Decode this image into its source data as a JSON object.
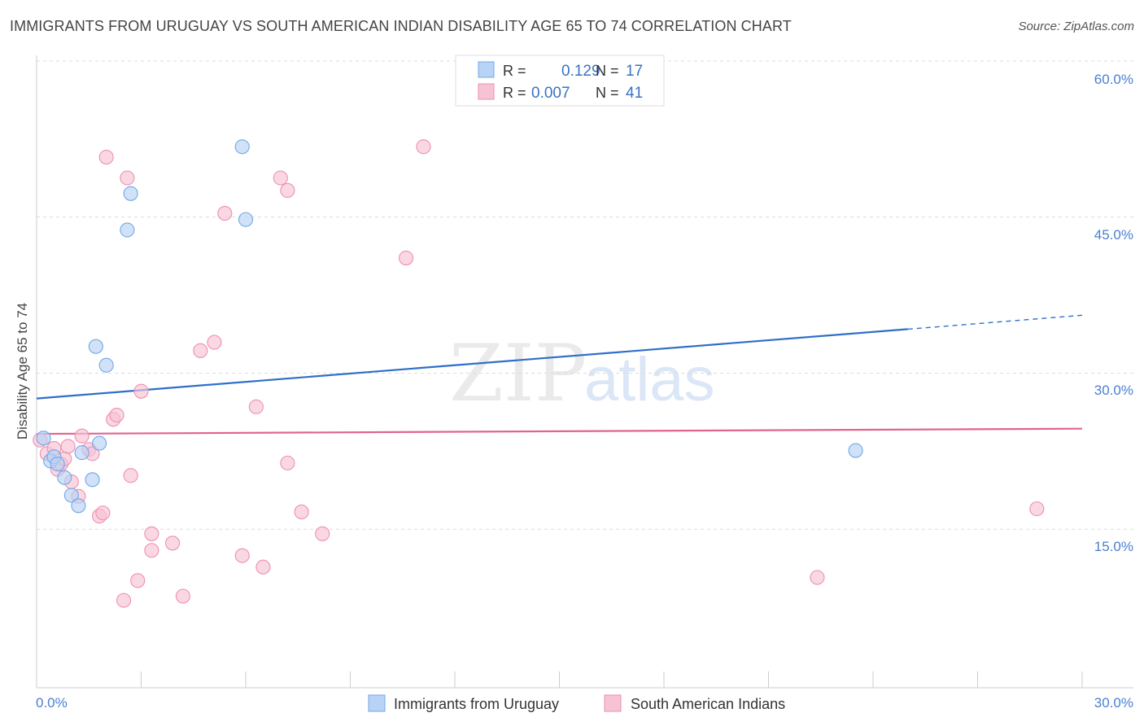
{
  "chart_data": {
    "type": "scatter",
    "title": "IMMIGRANTS FROM URUGUAY VS SOUTH AMERICAN INDIAN DISABILITY AGE 65 TO 74 CORRELATION CHART",
    "source": "Source: ZipAtlas.com",
    "watermark": {
      "zip": "ZIP",
      "atlas": "atlas"
    },
    "xlabel": "",
    "ylabel": "Disability Age 65 to 74",
    "xlim": [
      0,
      30
    ],
    "ylim": [
      0,
      60
    ],
    "x_tick_labels": [
      "0.0%",
      "30.0%"
    ],
    "y_ticks": [
      15,
      30,
      45,
      60
    ],
    "y_tick_labels": [
      "15.0%",
      "30.0%",
      "45.0%",
      "60.0%"
    ],
    "grid": true,
    "legend_position": "top-center",
    "stats": [
      {
        "r_label": "R =",
        "r_value": "0.129",
        "n_label": "N =",
        "n_value": "17"
      },
      {
        "r_label": "R =",
        "r_value": "0.007",
        "n_label": "N =",
        "n_value": "41"
      }
    ],
    "series": [
      {
        "name": "Immigrants from Uruguay",
        "color": "#6fa8e8",
        "fill": "#b8d3f5",
        "line_color": "#2e6fc8",
        "trend": {
          "x0": 0,
          "y0": 27.8,
          "x1": 30,
          "y1": 35.8,
          "solid_until": 25.0
        },
        "points": [
          [
            0.2,
            24.0
          ],
          [
            0.4,
            21.8
          ],
          [
            0.5,
            22.2
          ],
          [
            0.6,
            21.5
          ],
          [
            0.8,
            20.2
          ],
          [
            1.0,
            18.5
          ],
          [
            1.2,
            17.5
          ],
          [
            1.3,
            22.6
          ],
          [
            1.6,
            20.0
          ],
          [
            1.8,
            23.5
          ],
          [
            1.7,
            32.8
          ],
          [
            2.0,
            31.0
          ],
          [
            2.6,
            44.0
          ],
          [
            2.7,
            47.5
          ],
          [
            5.9,
            52.0
          ],
          [
            6.0,
            45.0
          ],
          [
            23.5,
            22.8
          ]
        ]
      },
      {
        "name": "South American Indians",
        "color": "#ee8fae",
        "fill": "#f7c3d4",
        "line_color": "#e0648e",
        "trend": {
          "x0": 0,
          "y0": 24.4,
          "x1": 30,
          "y1": 24.9
        },
        "points": [
          [
            0.1,
            23.8
          ],
          [
            0.3,
            22.5
          ],
          [
            0.5,
            23.0
          ],
          [
            0.6,
            21.0
          ],
          [
            0.7,
            21.5
          ],
          [
            0.8,
            22.0
          ],
          [
            0.9,
            23.2
          ],
          [
            1.0,
            19.8
          ],
          [
            1.2,
            18.4
          ],
          [
            1.3,
            24.2
          ],
          [
            1.5,
            22.9
          ],
          [
            1.6,
            22.5
          ],
          [
            1.8,
            16.5
          ],
          [
            1.9,
            16.8
          ],
          [
            2.2,
            25.8
          ],
          [
            2.3,
            26.2
          ],
          [
            2.5,
            8.4
          ],
          [
            2.7,
            20.4
          ],
          [
            2.9,
            10.3
          ],
          [
            3.0,
            28.5
          ],
          [
            2.0,
            51.0
          ],
          [
            2.6,
            49.0
          ],
          [
            3.3,
            14.8
          ],
          [
            3.3,
            13.2
          ],
          [
            3.9,
            13.9
          ],
          [
            4.2,
            8.8
          ],
          [
            4.7,
            32.4
          ],
          [
            5.1,
            33.2
          ],
          [
            5.4,
            45.6
          ],
          [
            5.9,
            12.7
          ],
          [
            6.3,
            27.0
          ],
          [
            6.5,
            11.6
          ],
          [
            7.0,
            49.0
          ],
          [
            7.2,
            47.8
          ],
          [
            7.2,
            21.6
          ],
          [
            7.6,
            16.9
          ],
          [
            8.2,
            14.8
          ],
          [
            10.6,
            41.3
          ],
          [
            11.1,
            52.0
          ],
          [
            22.4,
            10.6
          ],
          [
            28.7,
            17.2
          ]
        ]
      }
    ]
  }
}
